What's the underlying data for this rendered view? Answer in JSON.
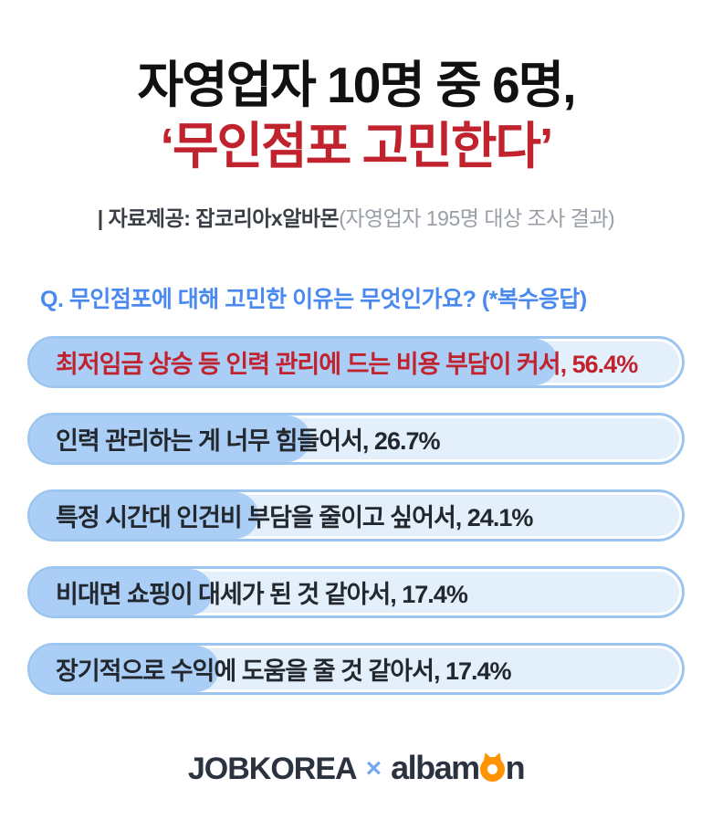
{
  "title": {
    "line1": "자영업자 10명 중 6명,",
    "line2": "‘무인점포 고민한다’"
  },
  "subtitle": {
    "strong": "| 자료제공: 잡코리아x알바몬",
    "light": "(자영업자 195명 대상 조사 결과)"
  },
  "question": "Q. 무인점포에 대해 고민한 이유는 무엇인가요? (*복수응답)",
  "survey": {
    "items": [
      {
        "text": "최저임금 상승 등 인력 관리에 드는 비용 부담이 커서, 56.4%",
        "value": 56.4,
        "fill_percent": 81,
        "highlight": true
      },
      {
        "text": "인력 관리하는 게 너무 힘들어서, 26.7%",
        "value": 26.7,
        "fill_percent": 43,
        "highlight": false
      },
      {
        "text": "특정 시간대 인건비 부담을 줄이고 싶어서, 24.1%",
        "value": 24.1,
        "fill_percent": 35,
        "highlight": false
      },
      {
        "text": "비대면 쇼핑이 대세가 된 것 같아서, 17.4%",
        "value": 17.4,
        "fill_percent": 28,
        "highlight": false
      },
      {
        "text": "장기적으로 수익에 도움을 줄 것 같아서, 17.4%",
        "value": 17.4,
        "fill_percent": 29,
        "highlight": false
      }
    ]
  },
  "footer": {
    "jobkorea": "JOBKOREA",
    "separator": "×",
    "albamon_pre": "albam",
    "albamon_post": "n",
    "monster_icon": "albamon-monster-o-icon"
  },
  "colors": {
    "title_black": "#111111",
    "accent_red": "#c1232e",
    "question_blue": "#4a8af0",
    "bar_border": "#9cc5f0",
    "bar_fill": "#aacef5",
    "bar_track": "#e3f0fc",
    "bar_text_dark": "#23272e",
    "logo_navy": "#2b3240",
    "logo_orange": "#ff9300",
    "subtitle_gray": "#999fa7"
  },
  "chart_data": {
    "type": "bar",
    "orientation": "horizontal",
    "title": "자영업자 10명 중 6명, ‘무인점포 고민한다’",
    "subtitle": "| 자료제공: 잡코리아x알바몬(자영업자 195명 대상 조사 결과)",
    "question_label": "Q. 무인점포에 대해 고민한 이유는 무엇인가요? (*복수응답)",
    "categories": [
      "최저임금 상승 등 인력 관리에 드는 비용 부담이 커서",
      "인력 관리하는 게 너무 힘들어서",
      "특정 시간대 인건비 부담을 줄이고 싶어서",
      "비대면 쇼핑이 대세가 된 것 같아서",
      "장기적으로 수익에 도움을 줄 것 같아서"
    ],
    "values": [
      56.4,
      26.7,
      24.1,
      17.4,
      17.4
    ],
    "unit": "%",
    "value_labels_inline": true,
    "highlighted_index": 0,
    "grid": false,
    "legend": false
  }
}
